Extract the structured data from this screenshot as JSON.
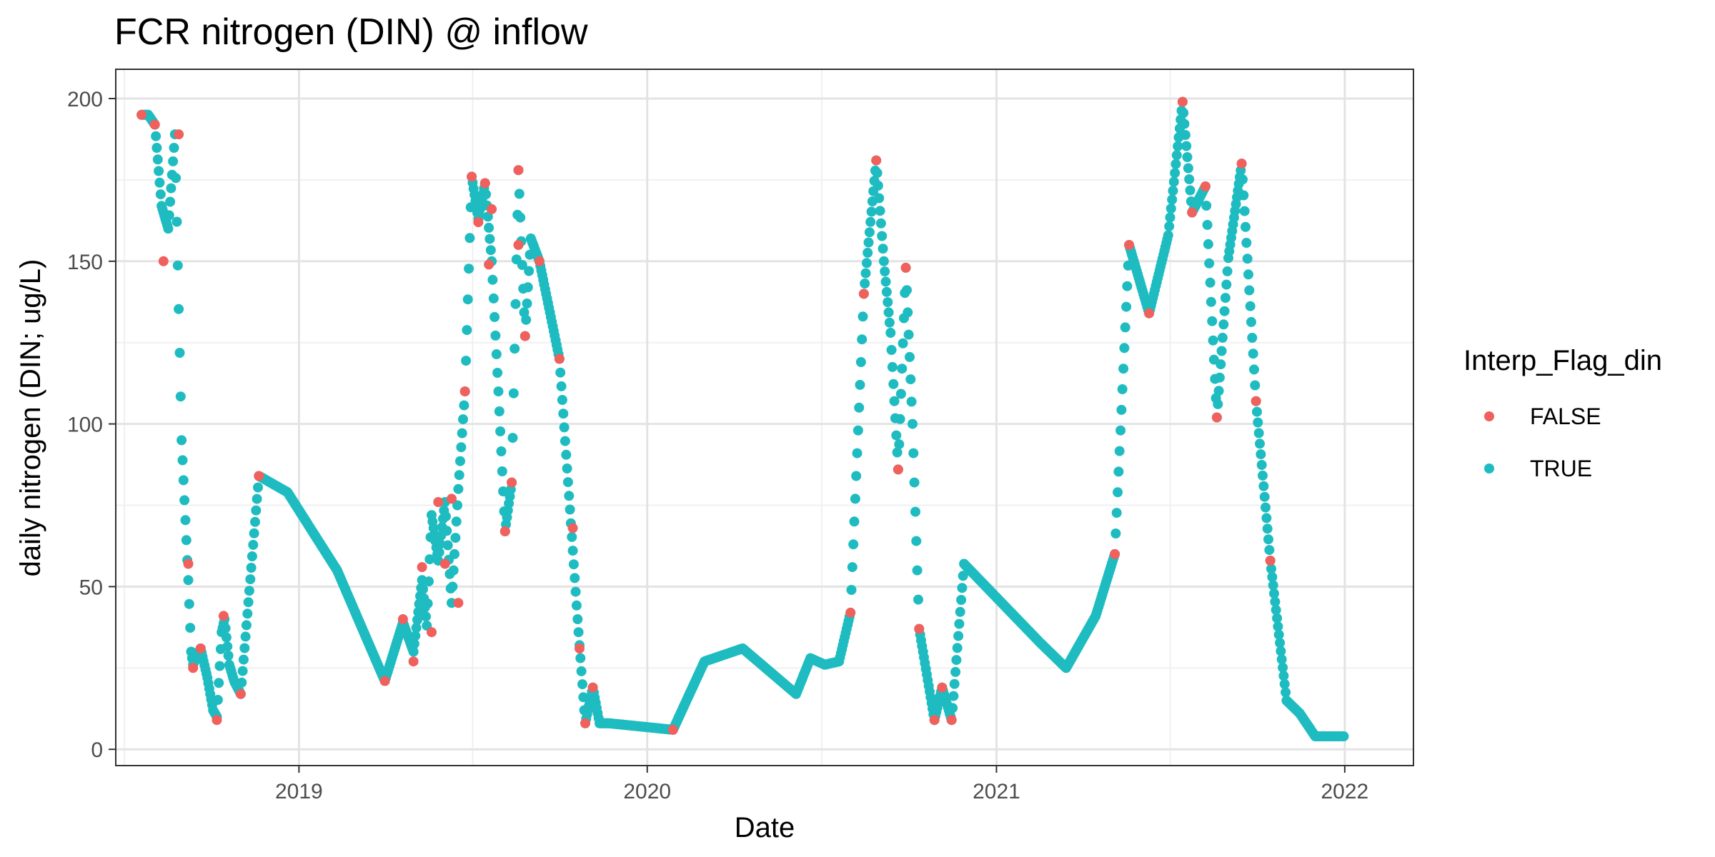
{
  "chart_data": {
    "type": "scatter",
    "title": "FCR nitrogen (DIN) @ inflow",
    "xlabel": "Date",
    "ylabel": "daily nitrogen (DIN; ug/L)",
    "x_axis": "date",
    "xlim": [
      "2018-06-23",
      "2022-03-14"
    ],
    "ylim": [
      -5,
      209
    ],
    "x_ticks": [
      {
        "date": "2019-01-01",
        "label": "2019"
      },
      {
        "date": "2020-01-01",
        "label": "2020"
      },
      {
        "date": "2021-01-01",
        "label": "2021"
      },
      {
        "date": "2022-01-01",
        "label": "2022"
      }
    ],
    "x_minor_ticks": [
      "2018-07-02",
      "2019-07-02",
      "2020-07-02",
      "2021-07-02"
    ],
    "y_ticks": [
      0,
      50,
      100,
      150,
      200
    ],
    "y_minor_ticks": [
      25,
      75,
      125,
      175
    ],
    "grid": true,
    "legend": {
      "title": "Interp_Flag_din",
      "position": "right"
    },
    "series": [
      {
        "name": "TRUE",
        "color": "#1ebcc1",
        "trace": [
          [
            "2018-07-20",
            195
          ],
          [
            "2018-07-27",
            195
          ],
          [
            "2018-08-03",
            192
          ],
          [
            "2018-08-10",
            167
          ],
          [
            "2018-08-17",
            160
          ],
          [
            "2018-08-24",
            189
          ],
          [
            "2018-08-31",
            95
          ],
          [
            "2018-09-07",
            52
          ],
          [
            "2018-09-10",
            30
          ],
          [
            "2018-09-12",
            26
          ],
          [
            "2018-09-20",
            31
          ],
          [
            "2018-09-27",
            22
          ],
          [
            "2018-10-03",
            12
          ],
          [
            "2018-10-07",
            10
          ],
          [
            "2018-10-12",
            36
          ],
          [
            "2018-10-15",
            40
          ],
          [
            "2018-10-20",
            26
          ],
          [
            "2018-10-25",
            21
          ],
          [
            "2018-11-01",
            17
          ],
          [
            "2018-11-20",
            84
          ],
          [
            "2018-12-20",
            79
          ],
          [
            "2019-02-10",
            55
          ],
          [
            "2019-04-01",
            21
          ],
          [
            "2019-04-20",
            39
          ],
          [
            "2019-05-01",
            30
          ],
          [
            "2019-05-10",
            52
          ],
          [
            "2019-05-15",
            38
          ],
          [
            "2019-05-20",
            72
          ],
          [
            "2019-05-27",
            58
          ],
          [
            "2019-06-03",
            76
          ],
          [
            "2019-06-10",
            45
          ],
          [
            "2019-06-17",
            80
          ],
          [
            "2019-06-24",
            110
          ],
          [
            "2019-07-01",
            176
          ],
          [
            "2019-07-08",
            163
          ],
          [
            "2019-07-15",
            174
          ],
          [
            "2019-07-22",
            150
          ],
          [
            "2019-07-29",
            110
          ],
          [
            "2019-08-05",
            67
          ],
          [
            "2019-08-12",
            82
          ],
          [
            "2019-08-19",
            178
          ],
          [
            "2019-08-26",
            127
          ],
          [
            "2019-09-01",
            157
          ],
          [
            "2019-09-10",
            150
          ],
          [
            "2019-10-01",
            120
          ],
          [
            "2019-10-20",
            40
          ],
          [
            "2019-10-28",
            8
          ],
          [
            "2019-11-05",
            19
          ],
          [
            "2019-11-12",
            8
          ],
          [
            "2019-11-22",
            8
          ],
          [
            "2020-01-28",
            6
          ],
          [
            "2020-03-01",
            27
          ],
          [
            "2020-04-10",
            31
          ],
          [
            "2020-06-05",
            17
          ],
          [
            "2020-06-20",
            28
          ],
          [
            "2020-07-05",
            26
          ],
          [
            "2020-07-20",
            27
          ],
          [
            "2020-08-01",
            42
          ],
          [
            "2020-08-15",
            140
          ],
          [
            "2020-08-28",
            181
          ],
          [
            "2020-09-05",
            150
          ],
          [
            "2020-09-12",
            128
          ],
          [
            "2020-09-20",
            86
          ],
          [
            "2020-09-28",
            148
          ],
          [
            "2020-10-05",
            100
          ],
          [
            "2020-10-12",
            37
          ],
          [
            "2020-10-28",
            9
          ],
          [
            "2020-11-05",
            19
          ],
          [
            "2020-11-15",
            9
          ],
          [
            "2020-11-28",
            57
          ],
          [
            "2021-02-15",
            33
          ],
          [
            "2021-03-15",
            25
          ],
          [
            "2021-04-15",
            41
          ],
          [
            "2021-05-05",
            60
          ],
          [
            "2021-05-20",
            155
          ],
          [
            "2021-06-10",
            134
          ],
          [
            "2021-06-30",
            158
          ],
          [
            "2021-07-15",
            199
          ],
          [
            "2021-07-25",
            165
          ],
          [
            "2021-08-08",
            173
          ],
          [
            "2021-08-20",
            102
          ],
          [
            "2021-09-01",
            151
          ],
          [
            "2021-09-15",
            180
          ],
          [
            "2021-09-30",
            107
          ],
          [
            "2021-10-15",
            58
          ],
          [
            "2021-11-01",
            15
          ],
          [
            "2021-11-15",
            11
          ],
          [
            "2021-12-01",
            4
          ],
          [
            "2021-12-31",
            4
          ]
        ]
      },
      {
        "name": "FALSE",
        "color": "#f0605d",
        "points": [
          [
            "2018-07-20",
            195
          ],
          [
            "2018-08-03",
            192
          ],
          [
            "2018-08-12",
            150
          ],
          [
            "2018-08-28",
            189
          ],
          [
            "2018-09-07",
            57
          ],
          [
            "2018-09-12",
            25
          ],
          [
            "2018-09-20",
            31
          ],
          [
            "2018-10-07",
            9
          ],
          [
            "2018-10-14",
            41
          ],
          [
            "2018-11-01",
            17
          ],
          [
            "2018-11-20",
            84
          ],
          [
            "2019-04-01",
            21
          ],
          [
            "2019-04-20",
            40
          ],
          [
            "2019-05-01",
            27
          ],
          [
            "2019-05-10",
            56
          ],
          [
            "2019-05-20",
            36
          ],
          [
            "2019-05-27",
            76
          ],
          [
            "2019-06-03",
            57
          ],
          [
            "2019-06-10",
            77
          ],
          [
            "2019-06-17",
            45
          ],
          [
            "2019-06-24",
            110
          ],
          [
            "2019-07-01",
            176
          ],
          [
            "2019-07-08",
            162
          ],
          [
            "2019-07-15",
            174
          ],
          [
            "2019-07-19",
            149
          ],
          [
            "2019-07-22",
            166
          ],
          [
            "2019-08-05",
            67
          ],
          [
            "2019-08-12",
            82
          ],
          [
            "2019-08-19",
            155
          ],
          [
            "2019-08-19",
            178
          ],
          [
            "2019-08-26",
            127
          ],
          [
            "2019-09-10",
            150
          ],
          [
            "2019-10-01",
            120
          ],
          [
            "2019-10-15",
            68
          ],
          [
            "2019-10-22",
            31
          ],
          [
            "2019-10-28",
            8
          ],
          [
            "2019-11-05",
            19
          ],
          [
            "2020-01-28",
            6
          ],
          [
            "2020-08-01",
            42
          ],
          [
            "2020-08-15",
            140
          ],
          [
            "2020-08-28",
            181
          ],
          [
            "2020-09-20",
            86
          ],
          [
            "2020-09-28",
            148
          ],
          [
            "2020-10-12",
            37
          ],
          [
            "2020-10-28",
            9
          ],
          [
            "2020-11-05",
            19
          ],
          [
            "2020-11-15",
            9
          ],
          [
            "2021-05-05",
            60
          ],
          [
            "2021-05-20",
            155
          ],
          [
            "2021-06-10",
            134
          ],
          [
            "2021-07-15",
            199
          ],
          [
            "2021-07-25",
            165
          ],
          [
            "2021-08-08",
            173
          ],
          [
            "2021-08-20",
            102
          ],
          [
            "2021-09-15",
            180
          ],
          [
            "2021-09-30",
            107
          ],
          [
            "2021-10-15",
            58
          ]
        ]
      }
    ]
  }
}
